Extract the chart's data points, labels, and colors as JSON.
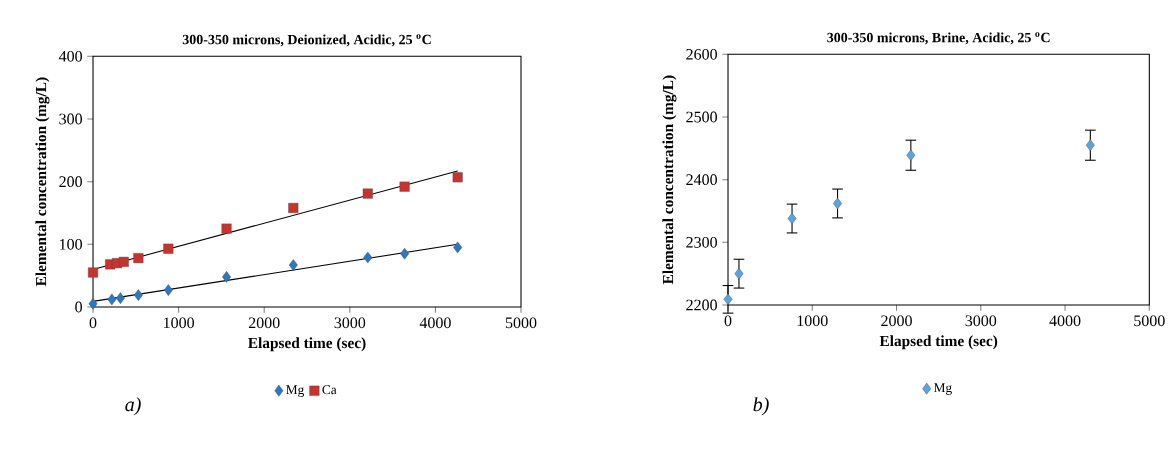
{
  "chart_data": [
    {
      "type": "scatter",
      "title": "300-350 microns, Deionized, Acidic, 25 $^{o}$C",
      "xlabel": "Elapsed time (sec)",
      "ylabel": "Elemental concentration (mg/L)",
      "xlim": [
        0,
        5000
      ],
      "xticks": [
        0,
        1000,
        2000,
        3000,
        4000,
        5000
      ],
      "ylim": [
        0,
        400
      ],
      "yticks": [
        0,
        100,
        200,
        300,
        400
      ],
      "grid": false,
      "legend": "bottom",
      "series": [
        {
          "name": "Mg",
          "color": "#2a78c2",
          "marker": "diamond",
          "x": [
            0,
            220,
            320,
            530,
            880,
            1560,
            2340,
            3210,
            3640,
            4260
          ],
          "values": [
            5,
            12,
            14,
            19,
            27,
            48,
            67,
            79,
            85,
            95
          ]
        },
        {
          "name": "Ca",
          "color": "#c8332e",
          "marker": "square",
          "x": [
            0,
            200,
            280,
            360,
            530,
            880,
            1560,
            2340,
            3210,
            3640,
            4260
          ],
          "values": [
            55,
            68,
            70,
            72,
            78,
            93,
            125,
            158,
            181,
            192,
            207
          ]
        },
        {
          "type": "line",
          "color": "#000000",
          "marker": "none",
          "x": [
            0,
            4260
          ],
          "values": [
            9,
            100
          ]
        },
        {
          "type": "line",
          "color": "#000000",
          "marker": "none",
          "x": [
            0,
            4260
          ],
          "values": [
            60,
            217
          ]
        }
      ],
      "annotations": [
        "a)"
      ]
    },
    {
      "type": "scatter",
      "title": "300-350 microns, Brine, Acidic, 25 $^{o}$C",
      "xlabel": "Elapsed time (sec)",
      "ylabel": "Elemental concentration (mg/L)",
      "xlim": [
        0,
        5000
      ],
      "xticks": [
        0,
        1000,
        2000,
        3000,
        4000,
        5000
      ],
      "ylim": [
        2200,
        2600
      ],
      "yticks": [
        2200,
        2300,
        2400,
        2500,
        2600
      ],
      "grid": false,
      "legend": "bottom",
      "series": [
        {
          "name": "Mg",
          "color": "#5ba3e0",
          "marker": "diamond",
          "x": [
            0,
            130,
            760,
            1300,
            2170,
            4300
          ],
          "values": [
            2209,
            2250,
            2338,
            2362,
            2439,
            2455
          ],
          "errors": [
            22,
            23,
            23,
            23,
            24,
            24
          ]
        }
      ],
      "annotations": [
        "b)"
      ]
    }
  ]
}
